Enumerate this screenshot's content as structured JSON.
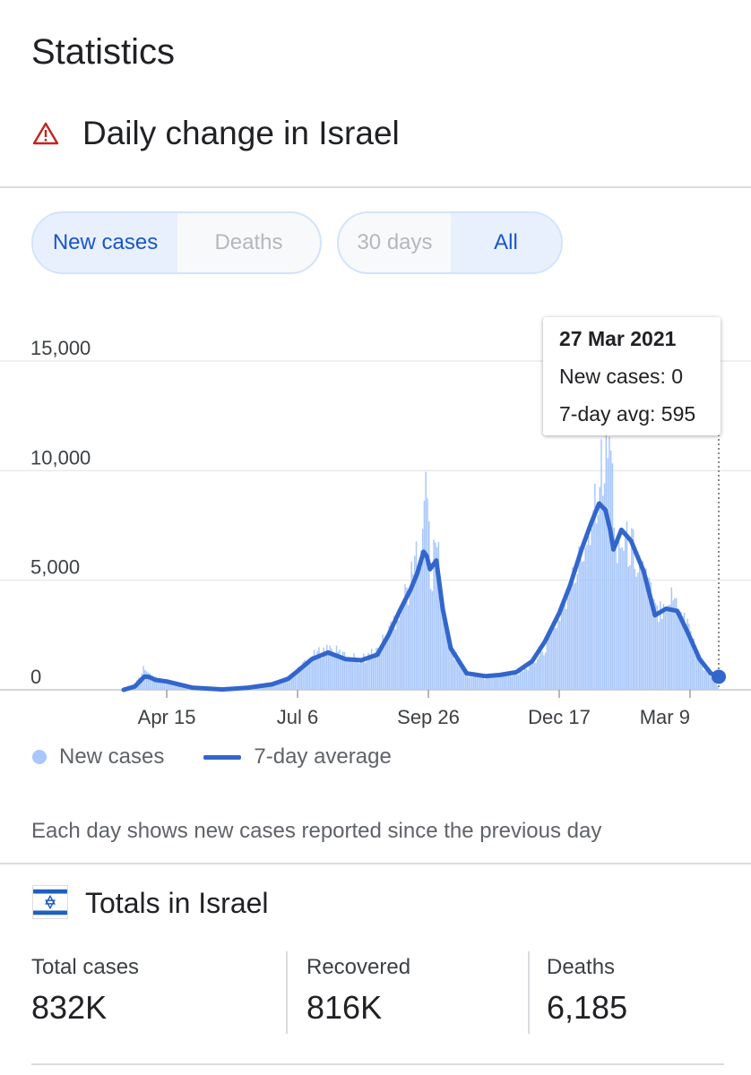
{
  "header": {
    "title": "Statistics",
    "section_title": "Daily change in Israel",
    "warning_icon": "warning-triangle-icon"
  },
  "controls": {
    "metric_options": [
      "New cases",
      "Deaths"
    ],
    "metric_selected": "New cases",
    "range_options": [
      "30 days",
      "All"
    ],
    "range_selected": "All"
  },
  "tooltip": {
    "date": "27 Mar 2021",
    "new_cases_line": "New cases: 0",
    "avg_line": "7-day avg: 595"
  },
  "legend": {
    "new_cases": "New cases",
    "avg": "7-day average"
  },
  "note": "Each day shows new cases reported since the previous day",
  "totals": {
    "title": "Totals in Israel",
    "flag_icon": "israel-flag-icon",
    "items": [
      {
        "label": "Total cases",
        "value": "832K"
      },
      {
        "label": "Recovered",
        "value": "816K"
      },
      {
        "label": "Deaths",
        "value": "6,185"
      }
    ]
  },
  "colors": {
    "bars": "#a8c7fa",
    "line": "#3366cc",
    "active_text": "#1a56c8",
    "active_bg": "#e8f0fe"
  },
  "chart_data": {
    "type": "bar",
    "title": "",
    "xlabel": "",
    "ylabel": "",
    "ylim": [
      0,
      15000
    ],
    "yticks": [
      0,
      5000,
      10000,
      15000
    ],
    "ytick_labels": [
      "0",
      "5,000",
      "10,000",
      "15,000"
    ],
    "xtick_labels": [
      "Apr 15",
      "Jul 6",
      "Sep 26",
      "Dec 17",
      "Mar 9"
    ],
    "xtick_dates": [
      "2020-04-15",
      "2020-07-06",
      "2020-09-26",
      "2020-12-17",
      "2021-03-09"
    ],
    "x_range": [
      "2020-03-19",
      "2021-03-27"
    ],
    "grid": true,
    "legend_position": "bottom-left",
    "highlight_date": "2021-03-27",
    "series": [
      {
        "name": "New cases",
        "kind": "bar",
        "points": [
          [
            "2020-03-19",
            0
          ],
          [
            "2020-03-26",
            300
          ],
          [
            "2020-04-01",
            1100
          ],
          [
            "2020-04-04",
            650
          ],
          [
            "2020-04-08",
            550
          ],
          [
            "2020-04-15",
            300
          ],
          [
            "2020-05-01",
            150
          ],
          [
            "2020-05-20",
            20
          ],
          [
            "2020-06-05",
            80
          ],
          [
            "2020-06-20",
            300
          ],
          [
            "2020-06-30",
            550
          ],
          [
            "2020-07-06",
            900
          ],
          [
            "2020-07-15",
            1500
          ],
          [
            "2020-07-25",
            1900
          ],
          [
            "2020-08-05",
            1500
          ],
          [
            "2020-08-15",
            1400
          ],
          [
            "2020-08-25",
            1800
          ],
          [
            "2020-09-01",
            2700
          ],
          [
            "2020-09-08",
            3800
          ],
          [
            "2020-09-15",
            5000
          ],
          [
            "2020-09-19",
            6400
          ],
          [
            "2020-09-23",
            8500
          ],
          [
            "2020-09-25",
            9100
          ],
          [
            "2020-09-27",
            4700
          ],
          [
            "2020-10-01",
            7000
          ],
          [
            "2020-10-05",
            3400
          ],
          [
            "2020-10-10",
            1800
          ],
          [
            "2020-10-20",
            700
          ],
          [
            "2020-11-01",
            550
          ],
          [
            "2020-11-10",
            650
          ],
          [
            "2020-11-20",
            750
          ],
          [
            "2020-11-30",
            1200
          ],
          [
            "2020-12-08",
            2000
          ],
          [
            "2020-12-17",
            3400
          ],
          [
            "2020-12-24",
            4700
          ],
          [
            "2020-12-31",
            6200
          ],
          [
            "2021-01-06",
            8000
          ],
          [
            "2021-01-11",
            10000
          ],
          [
            "2021-01-15",
            10200
          ],
          [
            "2021-01-18",
            11800
          ],
          [
            "2021-01-20",
            7000
          ],
          [
            "2021-01-25",
            6700
          ],
          [
            "2021-01-31",
            6500
          ],
          [
            "2021-02-08",
            5400
          ],
          [
            "2021-02-15",
            3500
          ],
          [
            "2021-02-22",
            4200
          ],
          [
            "2021-03-01",
            4100
          ],
          [
            "2021-03-07",
            3100
          ],
          [
            "2021-03-15",
            1200
          ],
          [
            "2021-03-22",
            700
          ],
          [
            "2021-03-27",
            0
          ]
        ]
      },
      {
        "name": "7-day average",
        "kind": "line",
        "points": [
          [
            "2020-03-19",
            0
          ],
          [
            "2020-03-26",
            150
          ],
          [
            "2020-04-01",
            600
          ],
          [
            "2020-04-04",
            580
          ],
          [
            "2020-04-08",
            450
          ],
          [
            "2020-04-15",
            380
          ],
          [
            "2020-05-01",
            100
          ],
          [
            "2020-05-20",
            15
          ],
          [
            "2020-06-05",
            100
          ],
          [
            "2020-06-20",
            250
          ],
          [
            "2020-06-30",
            500
          ],
          [
            "2020-07-06",
            850
          ],
          [
            "2020-07-15",
            1400
          ],
          [
            "2020-07-25",
            1700
          ],
          [
            "2020-08-05",
            1400
          ],
          [
            "2020-08-15",
            1350
          ],
          [
            "2020-08-25",
            1600
          ],
          [
            "2020-09-01",
            2500
          ],
          [
            "2020-09-08",
            3600
          ],
          [
            "2020-09-15",
            4600
          ],
          [
            "2020-09-19",
            5300
          ],
          [
            "2020-09-23",
            6300
          ],
          [
            "2020-09-25",
            6100
          ],
          [
            "2020-09-27",
            5500
          ],
          [
            "2020-10-01",
            5900
          ],
          [
            "2020-10-05",
            3700
          ],
          [
            "2020-10-10",
            1900
          ],
          [
            "2020-10-20",
            750
          ],
          [
            "2020-11-01",
            620
          ],
          [
            "2020-11-10",
            680
          ],
          [
            "2020-11-20",
            800
          ],
          [
            "2020-11-30",
            1300
          ],
          [
            "2020-12-08",
            2200
          ],
          [
            "2020-12-17",
            3500
          ],
          [
            "2020-12-24",
            4800
          ],
          [
            "2020-12-31",
            6400
          ],
          [
            "2021-01-06",
            7600
          ],
          [
            "2021-01-11",
            8500
          ],
          [
            "2021-01-15",
            8200
          ],
          [
            "2021-01-18",
            7300
          ],
          [
            "2021-01-20",
            6400
          ],
          [
            "2021-01-25",
            7300
          ],
          [
            "2021-01-31",
            6800
          ],
          [
            "2021-02-08",
            5400
          ],
          [
            "2021-02-15",
            3400
          ],
          [
            "2021-02-22",
            3700
          ],
          [
            "2021-03-01",
            3600
          ],
          [
            "2021-03-07",
            2700
          ],
          [
            "2021-03-15",
            1400
          ],
          [
            "2021-03-22",
            750
          ],
          [
            "2021-03-27",
            595
          ]
        ]
      }
    ]
  }
}
